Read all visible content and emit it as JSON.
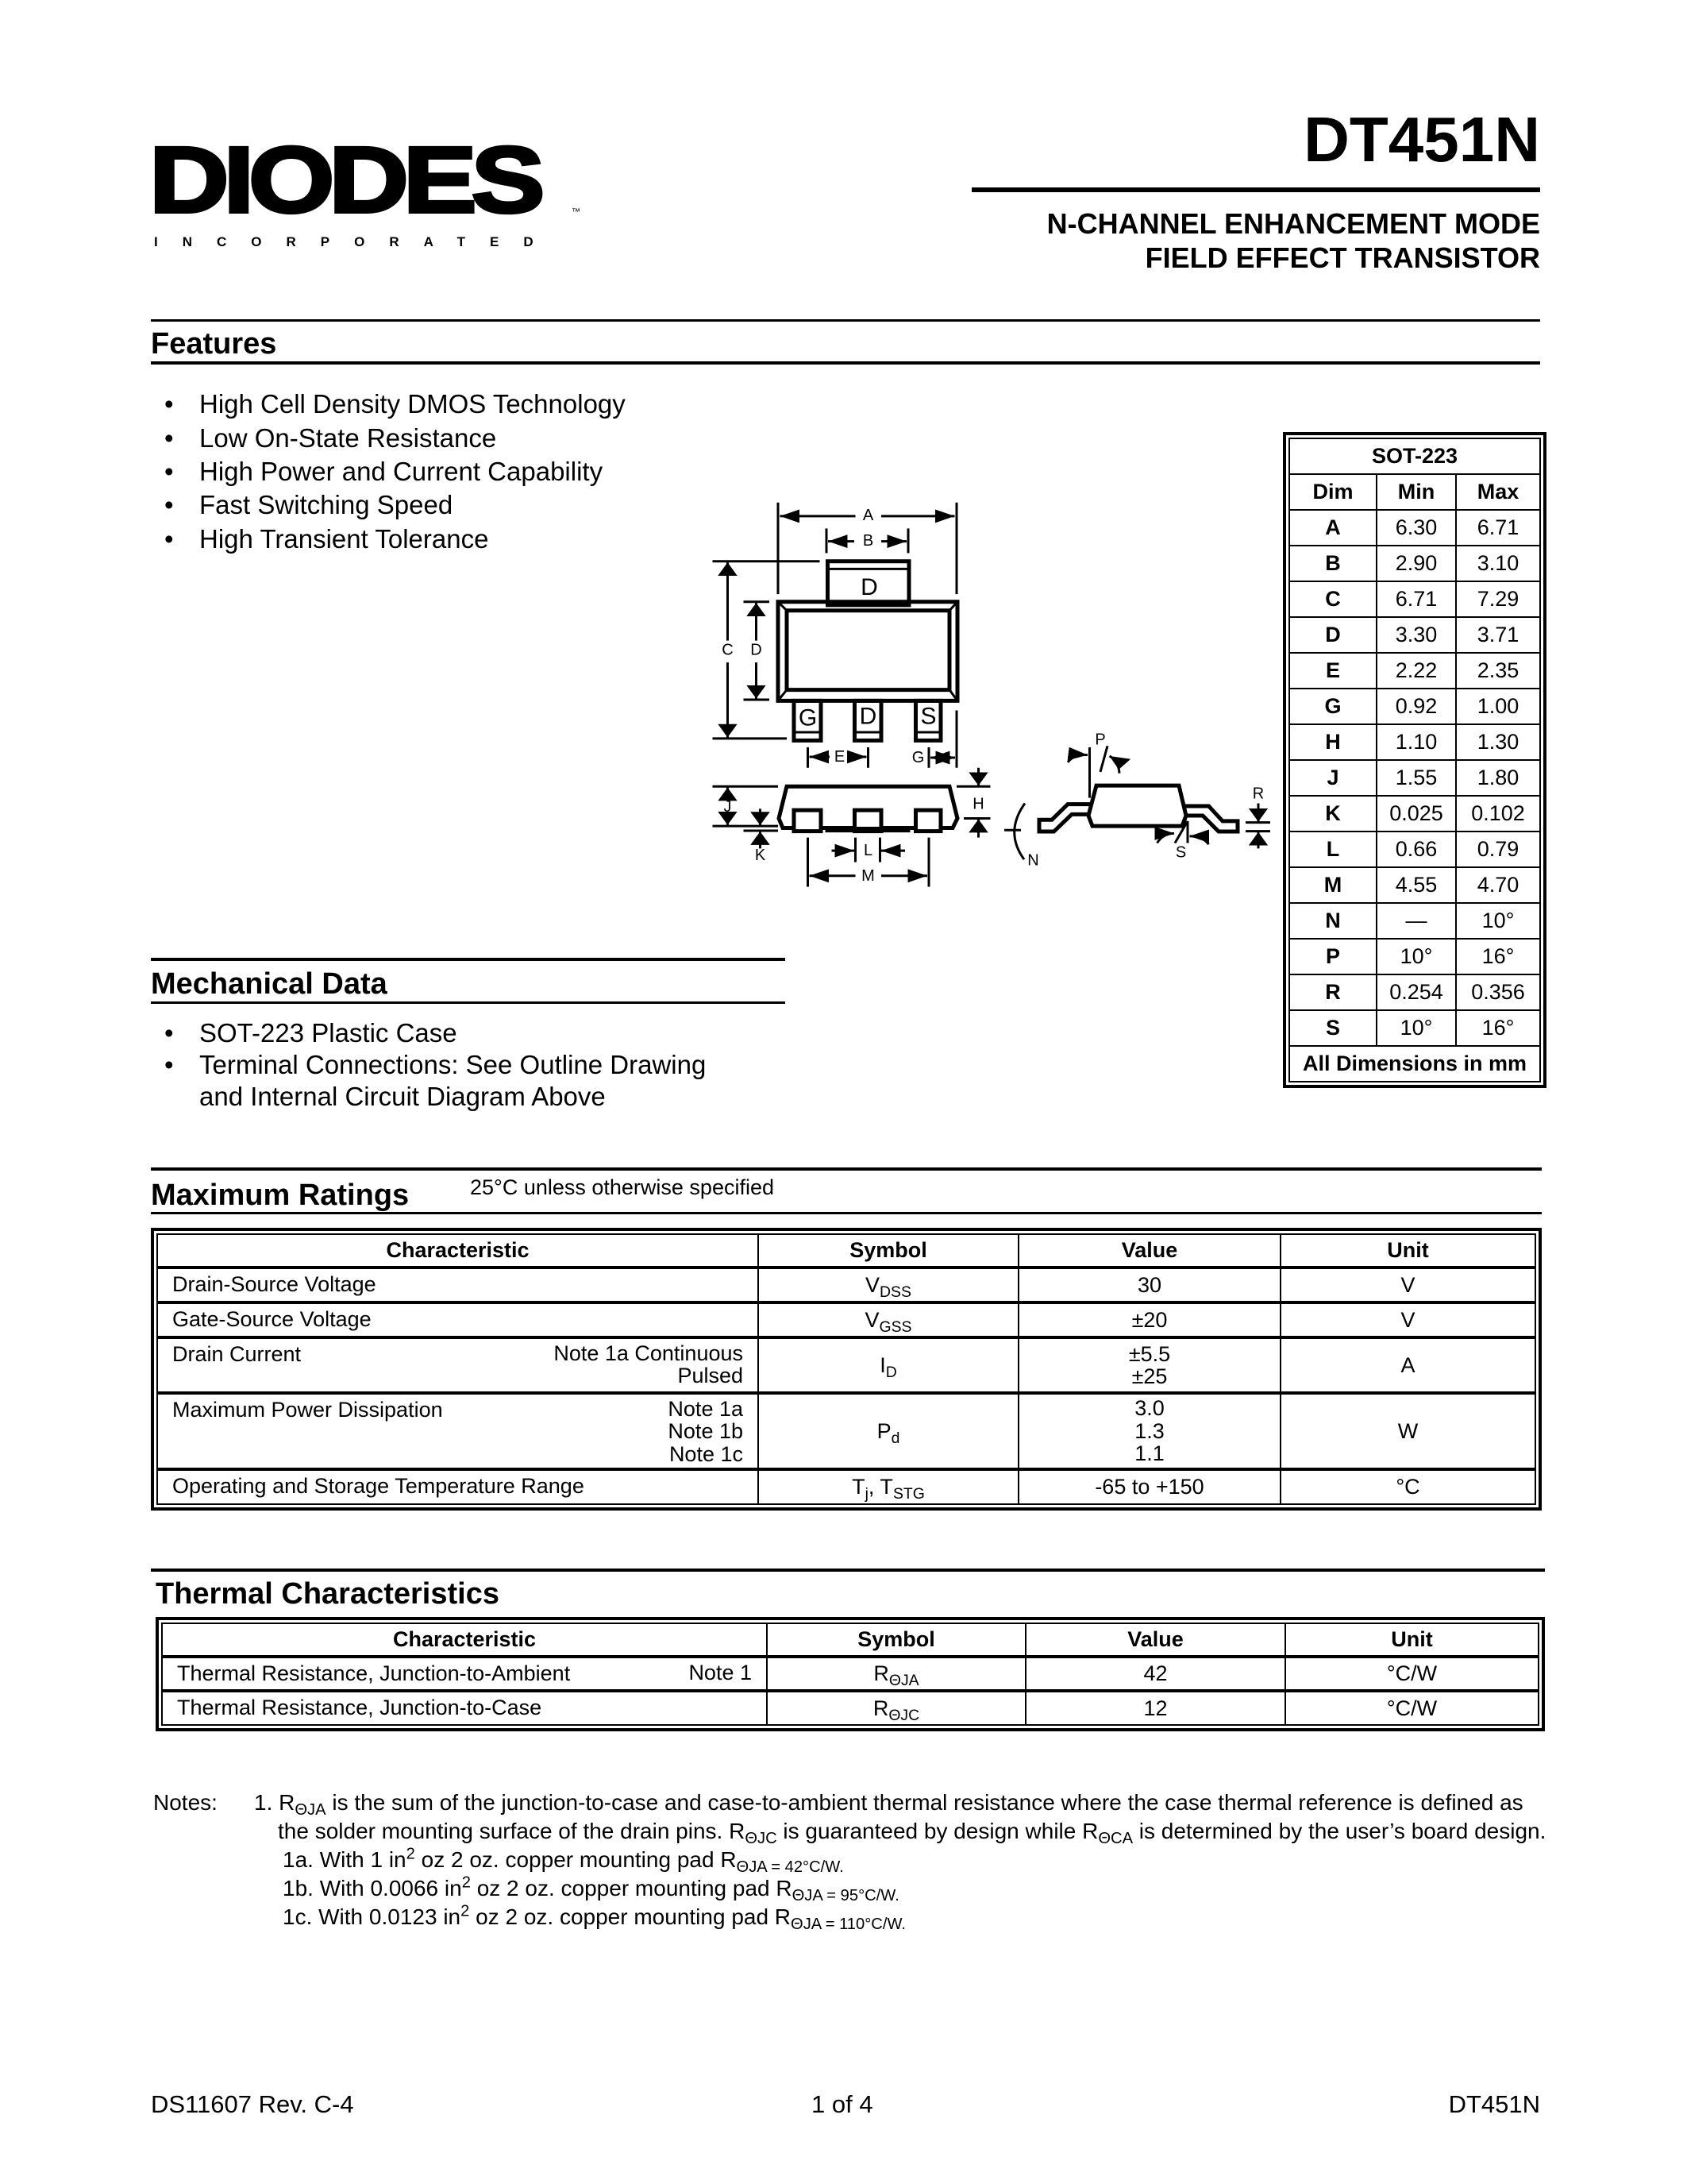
{
  "logo": {
    "main": "DIODES",
    "sub": "INCORPORATED",
    "tm": "™"
  },
  "header": {
    "part_number": "DT451N",
    "subtitle_line1": "N-CHANNEL ENHANCEMENT MODE",
    "subtitle_line2": "FIELD EFFECT TRANSISTOR"
  },
  "features": {
    "title": "Features",
    "bullet": "•",
    "items": [
      "High Cell Density DMOS Technology",
      "Low On-State Resistance",
      "High Power and Current Capability",
      "Fast Switching Speed",
      "High Transient Tolerance"
    ]
  },
  "drawing": {
    "labels": {
      "A": "A",
      "B": "B",
      "C": "C",
      "D": "D",
      "E": "E",
      "G": "G",
      "H": "H",
      "J": "J",
      "K": "K",
      "L": "L",
      "M": "M",
      "N": "N",
      "P": "P",
      "R": "R",
      "S": "S"
    },
    "pins": {
      "tab": "D",
      "pin1": "G",
      "pin2": "D",
      "pin3": "S"
    }
  },
  "dimensions": {
    "package": "SOT-223",
    "headers": [
      "Dim",
      "Min",
      "Max"
    ],
    "rows": [
      [
        "A",
        "6.30",
        "6.71"
      ],
      [
        "B",
        "2.90",
        "3.10"
      ],
      [
        "C",
        "6.71",
        "7.29"
      ],
      [
        "D",
        "3.30",
        "3.71"
      ],
      [
        "E",
        "2.22",
        "2.35"
      ],
      [
        "G",
        "0.92",
        "1.00"
      ],
      [
        "H",
        "1.10",
        "1.30"
      ],
      [
        "J",
        "1.55",
        "1.80"
      ],
      [
        "K",
        "0.025",
        "0.102"
      ],
      [
        "L",
        "0.66",
        "0.79"
      ],
      [
        "M",
        "4.55",
        "4.70"
      ],
      [
        "N",
        "—",
        "10°"
      ],
      [
        "P",
        "10°",
        "16°"
      ],
      [
        "R",
        "0.254",
        "0.356"
      ],
      [
        "S",
        "10°",
        "16°"
      ]
    ],
    "footer": "All Dimensions in mm"
  },
  "mechanical": {
    "title": "Mechanical Data",
    "items": [
      "SOT-223 Plastic Case",
      "Terminal Connections: See Outline Drawing",
      "and Internal Circuit Diagram Above"
    ]
  },
  "max_ratings": {
    "title": "Maximum Ratings",
    "condition": "25°C unless otherwise specified",
    "headers": [
      "Characteristic",
      "Symbol",
      "Value",
      "Unit"
    ],
    "rows": [
      {
        "char": "Drain-Source Voltage",
        "notes": [],
        "sym": "V",
        "sub": "DSS",
        "values": [
          "30"
        ],
        "unit": "V"
      },
      {
        "char": "Gate-Source Voltage",
        "notes": [],
        "sym": "V",
        "sub": "GSS",
        "values": [
          "±20"
        ],
        "unit": "V"
      },
      {
        "char": "Drain Current",
        "notes": [
          "Note 1a Continuous",
          "Pulsed"
        ],
        "sym": "I",
        "sub": "D",
        "values": [
          "±5.5",
          "±25"
        ],
        "unit": "A"
      },
      {
        "char": "Maximum Power Dissipation",
        "notes": [
          "Note 1a",
          "Note 1b",
          "Note 1c"
        ],
        "sym": "P",
        "sub": "d",
        "values": [
          "3.0",
          "1.3",
          "1.1"
        ],
        "unit": "W"
      },
      {
        "char": "Operating and Storage Temperature Range",
        "notes": [],
        "sym": "T",
        "sub": "j",
        "sym2": ", T",
        "sub2": "STG",
        "values": [
          "-65 to +150"
        ],
        "unit": "°C"
      }
    ]
  },
  "thermal": {
    "title": "Thermal Characteristics",
    "headers": [
      "Characteristic",
      "Symbol",
      "Value",
      "Unit"
    ],
    "rows": [
      {
        "char": "Thermal Resistance, Junction-to-Ambient",
        "note": "Note 1",
        "sym": "R",
        "sub": "ΘJA",
        "value": "42",
        "unit": "°C/W"
      },
      {
        "char": "Thermal Resistance, Junction-to-Case",
        "note": "",
        "sym": "R",
        "sub": "ΘJC",
        "value": "12",
        "unit": "°C/W"
      }
    ]
  },
  "notes": {
    "label": "Notes:",
    "n1_num": "1. R",
    "n1_sub": "ΘJA",
    "n1_text": " is the sum of the junction-to-case and case-to-ambient thermal resistance where the case thermal reference is defined as",
    "n1_l2a": "the solder mounting surface of the drain pins. R",
    "n1_l2sub1": "ΘJC",
    "n1_l2b": " is guaranteed by design while R",
    "n1_l2sub2": "ΘCA",
    "n1_l2c": " is determined by the user’s board design.",
    "n1a_a": "1a. With 1 in",
    "n1a_sup": "2",
    "n1a_b": " oz 2 oz. copper mounting pad R",
    "n1a_sub": "ΘJA = 42°C/W.",
    "n1b_a": "1b. With 0.0066 in",
    "n1b_sup": "2",
    "n1b_b": " oz 2 oz. copper mounting pad R",
    "n1b_sub": "ΘJA = 95°C/W.",
    "n1c_a": "1c. With 0.0123 in",
    "n1c_sup": "2",
    "n1c_b": " oz 2 oz. copper mounting pad R",
    "n1c_sub": "ΘJA = 110°C/W."
  },
  "footer": {
    "doc_number": "DS11607 Rev. C-4",
    "page": "1 of 4",
    "part": "DT451N"
  }
}
